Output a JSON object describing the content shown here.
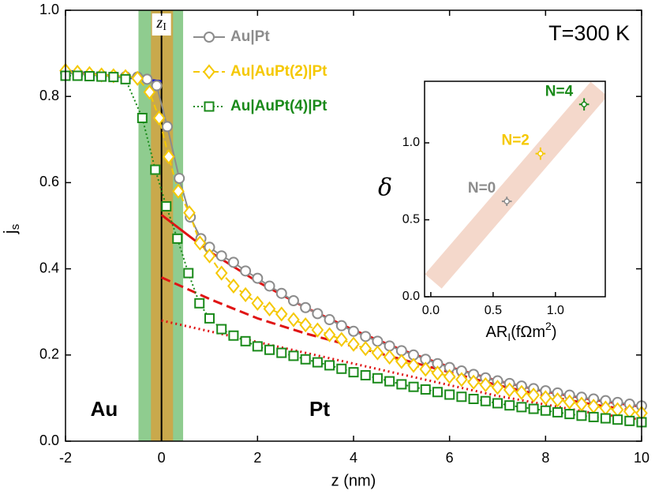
{
  "chart_data": {
    "type": "line",
    "xlabel": "z (nm)",
    "ylabel": {
      "text": "j",
      "sub": "s"
    },
    "xlim": [
      -2,
      10
    ],
    "ylim": [
      0,
      1
    ],
    "xticks": [
      -2,
      0,
      2,
      4,
      6,
      8,
      10
    ],
    "yticks": [
      {
        "value": 0,
        "label": "0.0"
      },
      0.2,
      0.4,
      0.6,
      0.8,
      {
        "value": 1,
        "label": "1.0"
      }
    ],
    "interface": {
      "x": 0,
      "label": {
        "text": "z",
        "sub": "I"
      },
      "color": "#000000"
    },
    "bands": [
      {
        "xmin": -0.48,
        "xmax": 0.45,
        "color": "#8fcc8f"
      },
      {
        "xmin": -0.22,
        "xmax": 0.24,
        "color": "#c9a94c"
      }
    ],
    "annotations": {
      "temperature": "T=300 K",
      "left": "Au",
      "right": "Pt"
    },
    "series": [
      {
        "name": "Au|Pt",
        "color": "#8c8c8c",
        "marker": "circle",
        "dash": "none",
        "x": [
          -2,
          -1.75,
          -1.5,
          -1.25,
          -1,
          -0.75,
          -0.5,
          -0.3,
          -0.1,
          0.12,
          0.37,
          0.6,
          0.82,
          1,
          1.25,
          1.5,
          1.75,
          2,
          2.25,
          2.5,
          2.75,
          3,
          3.25,
          3.5,
          3.75,
          4,
          4.25,
          4.5,
          4.75,
          5,
          5.25,
          5.5,
          5.75,
          6,
          6.25,
          6.5,
          6.75,
          7,
          7.25,
          7.5,
          7.75,
          8,
          8.25,
          8.5,
          8.75,
          9,
          9.25,
          9.5,
          9.75,
          10
        ],
        "values": [
          0.855,
          0.852,
          0.85,
          0.848,
          0.847,
          0.846,
          0.845,
          0.84,
          0.825,
          0.73,
          0.61,
          0.52,
          0.47,
          0.45,
          0.43,
          0.415,
          0.395,
          0.378,
          0.36,
          0.343,
          0.326,
          0.31,
          0.296,
          0.282,
          0.268,
          0.255,
          0.243,
          0.232,
          0.221,
          0.21,
          0.2,
          0.19,
          0.18,
          0.171,
          0.163,
          0.155,
          0.147,
          0.14,
          0.134,
          0.128,
          0.122,
          0.117,
          0.112,
          0.107,
          0.102,
          0.098,
          0.094,
          0.09,
          0.086,
          0.082
        ]
      },
      {
        "name": "Au|AuPt(2)|Pt",
        "color": "#f5c800",
        "marker": "diamond",
        "dash": "8,4",
        "x": [
          -2,
          -1.75,
          -1.5,
          -1.25,
          -1,
          -0.75,
          -0.5,
          -0.25,
          -0.05,
          0.15,
          0.35,
          0.58,
          0.8,
          1,
          1.25,
          1.5,
          1.75,
          2,
          2.25,
          2.5,
          2.75,
          3,
          3.25,
          3.5,
          3.75,
          4,
          4.25,
          4.5,
          4.75,
          5,
          5.25,
          5.5,
          5.75,
          6,
          6.25,
          6.5,
          6.75,
          7,
          7.25,
          7.5,
          7.75,
          8,
          8.25,
          8.5,
          8.75,
          9,
          9.25,
          9.5,
          9.75,
          10
        ],
        "values": [
          0.86,
          0.856,
          0.853,
          0.85,
          0.848,
          0.846,
          0.842,
          0.81,
          0.75,
          0.66,
          0.58,
          0.53,
          0.46,
          0.43,
          0.39,
          0.36,
          0.34,
          0.32,
          0.307,
          0.295,
          0.282,
          0.27,
          0.258,
          0.247,
          0.236,
          0.225,
          0.215,
          0.205,
          0.195,
          0.185,
          0.176,
          0.167,
          0.158,
          0.15,
          0.143,
          0.137,
          0.131,
          0.125,
          0.119,
          0.113,
          0.107,
          0.101,
          0.096,
          0.091,
          0.086,
          0.081,
          0.077,
          0.073,
          0.069,
          0.065
        ]
      },
      {
        "name": "Au|AuPt(4)|Pt",
        "color": "#1a8a1a",
        "marker": "square",
        "dash": "2,3",
        "x": [
          -2,
          -1.75,
          -1.5,
          -1.25,
          -1,
          -0.75,
          -0.4,
          -0.13,
          0.1,
          0.33,
          0.56,
          0.79,
          1,
          1.25,
          1.5,
          1.75,
          2,
          2.25,
          2.5,
          2.75,
          3,
          3.25,
          3.5,
          3.75,
          4,
          4.25,
          4.5,
          4.75,
          5,
          5.25,
          5.5,
          5.75,
          6,
          6.25,
          6.5,
          6.75,
          7,
          7.25,
          7.5,
          7.75,
          8,
          8.25,
          8.5,
          8.75,
          9,
          9.25,
          9.5,
          9.75,
          10
        ],
        "values": [
          0.848,
          0.848,
          0.847,
          0.846,
          0.845,
          0.84,
          0.75,
          0.63,
          0.545,
          0.47,
          0.39,
          0.32,
          0.285,
          0.26,
          0.245,
          0.232,
          0.22,
          0.212,
          0.205,
          0.198,
          0.19,
          0.183,
          0.176,
          0.168,
          0.16,
          0.153,
          0.146,
          0.139,
          0.132,
          0.126,
          0.12,
          0.114,
          0.108,
          0.103,
          0.098,
          0.093,
          0.088,
          0.083,
          0.079,
          0.075,
          0.071,
          0.067,
          0.063,
          0.059,
          0.056,
          0.053,
          0.05,
          0.047,
          0.044
        ]
      }
    ],
    "fits": [
      {
        "color": "#1414d2",
        "dash": "none",
        "x": [
          -2,
          0
        ],
        "values": [
          0.86,
          0.835
        ]
      },
      {
        "color": "#e01414",
        "dash": "none",
        "x": [
          0,
          1,
          2,
          3,
          4,
          5,
          6,
          7,
          8,
          9,
          10
        ],
        "values": [
          0.525,
          0.44,
          0.37,
          0.31,
          0.258,
          0.212,
          0.172,
          0.14,
          0.115,
          0.096,
          0.08
        ]
      },
      {
        "color": "#e01414",
        "dash": "12,6",
        "x": [
          0,
          1,
          2,
          3,
          4,
          5,
          6,
          7,
          8,
          9,
          10
        ],
        "values": [
          0.38,
          0.33,
          0.285,
          0.25,
          0.22,
          0.19,
          0.16,
          0.13,
          0.105,
          0.085,
          0.068
        ]
      },
      {
        "color": "#e01414",
        "dash": "2,4",
        "x": [
          0,
          1,
          2,
          3,
          4,
          5,
          6,
          7,
          8,
          9,
          10
        ],
        "values": [
          0.28,
          0.255,
          0.23,
          0.205,
          0.18,
          0.155,
          0.13,
          0.105,
          0.085,
          0.065,
          0.05
        ]
      }
    ],
    "inset": {
      "type": "scatter",
      "xlabel": {
        "text": "AR",
        "sub": "I",
        "unit": "(fΩm",
        "sup": "2",
        "close": ")"
      },
      "ylabel": "δ",
      "xlim": [
        -0.05,
        1.4
      ],
      "ylim": [
        0,
        1.4
      ],
      "xticks": [
        {
          "value": 0,
          "label": "0.0"
        },
        0.5,
        {
          "value": 1,
          "label": "1.0"
        }
      ],
      "yticks": [
        {
          "value": 0,
          "label": "0.0"
        },
        0.5,
        {
          "value": 1,
          "label": "1.0"
        }
      ],
      "guide": {
        "color": "#f4d8cb",
        "x": [
          0.02,
          1.35
        ],
        "values": [
          0.1,
          1.35
        ]
      },
      "series": [
        {
          "name": "N=0",
          "color": "#8c8c8c",
          "x": [
            0.61
          ],
          "values": [
            0.62
          ],
          "xerr": [
            0.04
          ],
          "yerr": [
            0.03
          ]
        },
        {
          "name": "N=2",
          "color": "#f5c800",
          "x": [
            0.88
          ],
          "values": [
            0.93
          ],
          "xerr": [
            0.04
          ],
          "yerr": [
            0.04
          ]
        },
        {
          "name": "N=4",
          "color": "#1a8a1a",
          "x": [
            1.23
          ],
          "values": [
            1.25
          ],
          "xerr": [
            0.04
          ],
          "yerr": [
            0.04
          ]
        }
      ]
    }
  }
}
